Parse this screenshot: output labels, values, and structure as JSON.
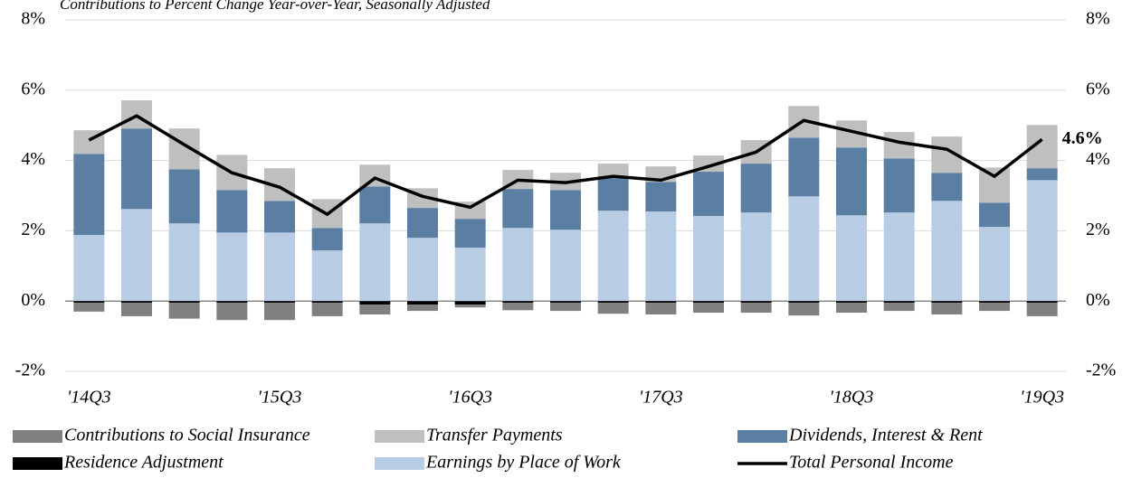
{
  "chart_data": {
    "type": "bar",
    "title": "Contributions to Percent Change Year-over-Year, Seasonally Adjusted",
    "categories": [
      "'14Q3",
      null,
      null,
      null,
      "'15Q3",
      null,
      null,
      null,
      "'16Q3",
      null,
      null,
      null,
      "'17Q3",
      null,
      null,
      null,
      "'18Q3",
      null,
      null,
      null,
      "'19Q3"
    ],
    "ylim": [
      -2,
      8
    ],
    "yticks": [
      {
        "value": -2,
        "label": "-2%"
      },
      {
        "value": 0,
        "label": "0%"
      },
      {
        "value": 2,
        "label": "2%"
      },
      {
        "value": 4,
        "label": "4%"
      },
      {
        "value": 6,
        "label": "6%"
      },
      {
        "value": 8,
        "label": "8%"
      }
    ],
    "y2lim": [
      -2,
      8
    ],
    "y2ticks": [
      {
        "value": -2,
        "label": "-2%"
      },
      {
        "value": 0,
        "label": "0%"
      },
      {
        "value": 2,
        "label": "2%"
      },
      {
        "value": 4,
        "label": "4%"
      },
      {
        "value": 6,
        "label": "6%"
      },
      {
        "value": 8,
        "label": "8%"
      }
    ],
    "grid": true,
    "series": [
      {
        "name": "Contributions to Social Insurance",
        "color": "#808080",
        "values": [
          -0.25,
          -0.38,
          -0.45,
          -0.49,
          -0.49,
          -0.38,
          -0.28,
          -0.18,
          -0.08,
          -0.21,
          -0.23,
          -0.31,
          -0.33,
          -0.28,
          -0.28,
          -0.36,
          -0.28,
          -0.23,
          -0.33,
          -0.23,
          -0.38
        ]
      },
      {
        "name": "Transfer Payments",
        "color": "#bfbfbf",
        "values": [
          0.67,
          0.8,
          1.16,
          1.0,
          0.93,
          0.82,
          0.62,
          0.56,
          0.49,
          0.54,
          0.49,
          0.41,
          0.44,
          0.46,
          0.67,
          0.9,
          0.77,
          0.75,
          1.03,
          1.0,
          1.23
        ]
      },
      {
        "name": "Dividends, Interest & Rent",
        "color": "#5b7fa3",
        "values": [
          2.31,
          2.29,
          1.54,
          1.21,
          0.9,
          0.64,
          1.05,
          0.85,
          0.82,
          1.11,
          1.13,
          0.93,
          0.84,
          1.26,
          1.39,
          1.67,
          1.93,
          1.54,
          0.8,
          0.69,
          0.34
        ]
      },
      {
        "name": "Residence Adjustment",
        "color": "#000000",
        "values": [
          -0.05,
          -0.05,
          -0.05,
          -0.05,
          -0.05,
          -0.05,
          -0.1,
          -0.1,
          -0.1,
          -0.05,
          -0.05,
          -0.05,
          -0.05,
          -0.05,
          -0.05,
          -0.05,
          -0.05,
          -0.05,
          -0.05,
          -0.05,
          -0.05
        ]
      },
      {
        "name": "Earnings by Place of Work",
        "color": "#b8cce4",
        "values": [
          1.88,
          2.62,
          2.21,
          1.95,
          1.95,
          1.44,
          2.21,
          1.8,
          1.52,
          2.08,
          2.03,
          2.57,
          2.55,
          2.42,
          2.52,
          2.98,
          2.44,
          2.52,
          2.85,
          2.11,
          3.44
        ]
      },
      {
        "name": "Total Personal Income",
        "color": "#000000",
        "type": "line",
        "values": [
          4.58,
          5.27,
          4.45,
          3.65,
          3.24,
          2.47,
          3.5,
          2.98,
          2.67,
          3.44,
          3.37,
          3.55,
          3.44,
          3.83,
          4.24,
          5.14,
          4.83,
          4.52,
          4.32,
          3.55,
          4.6
        ],
        "value_labels": [
          null,
          null,
          null,
          null,
          null,
          null,
          null,
          null,
          null,
          null,
          null,
          null,
          null,
          null,
          null,
          null,
          null,
          null,
          null,
          null,
          "4.6%"
        ]
      }
    ]
  }
}
